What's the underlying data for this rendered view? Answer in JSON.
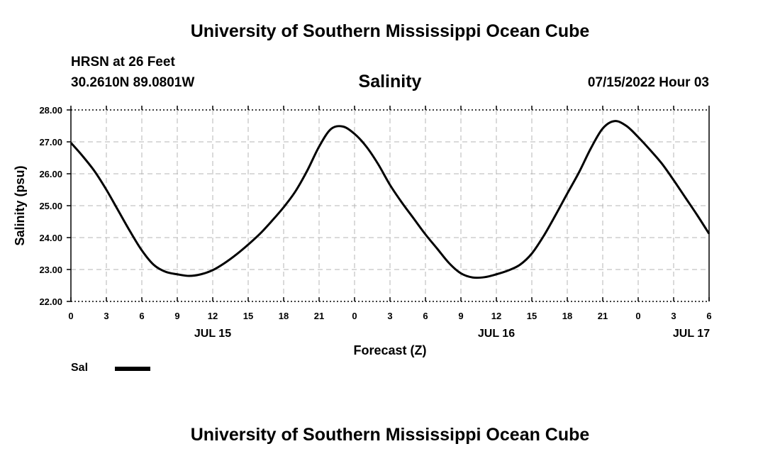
{
  "header": {
    "title": "University of Southern Mississippi Ocean Cube",
    "station": "HRSN at 26 Feet",
    "coordinates": "30.2610N  89.0801W",
    "datetime": "07/15/2022 Hour 03"
  },
  "footer": {
    "title": "University of Southern Mississippi Ocean Cube"
  },
  "legend": {
    "label": "Sal",
    "color": "#000000"
  },
  "chart_data": {
    "type": "line",
    "title": "Salinity",
    "xlabel": "Forecast (Z)",
    "ylabel": "Salinity (psu)",
    "xlim": [
      0,
      54
    ],
    "ylim": [
      22,
      28
    ],
    "y_ticks": [
      "22.00",
      "23.00",
      "24.00",
      "25.00",
      "26.00",
      "27.00",
      "28.00"
    ],
    "x_ticks": [
      {
        "hour": 0,
        "label": "0"
      },
      {
        "hour": 3,
        "label": "3"
      },
      {
        "hour": 6,
        "label": "6"
      },
      {
        "hour": 9,
        "label": "9"
      },
      {
        "hour": 12,
        "label": "12"
      },
      {
        "hour": 15,
        "label": "15"
      },
      {
        "hour": 18,
        "label": "18"
      },
      {
        "hour": 21,
        "label": "21"
      },
      {
        "hour": 24,
        "label": "0"
      },
      {
        "hour": 27,
        "label": "3"
      },
      {
        "hour": 30,
        "label": "6"
      },
      {
        "hour": 33,
        "label": "9"
      },
      {
        "hour": 36,
        "label": "12"
      },
      {
        "hour": 39,
        "label": "15"
      },
      {
        "hour": 42,
        "label": "18"
      },
      {
        "hour": 45,
        "label": "21"
      },
      {
        "hour": 48,
        "label": "0"
      },
      {
        "hour": 51,
        "label": "3"
      },
      {
        "hour": 54,
        "label": "6"
      }
    ],
    "date_labels": [
      {
        "hour": 12,
        "label": "JUL 15"
      },
      {
        "hour": 36,
        "label": "JUL 16"
      },
      {
        "hour": 52.5,
        "label": "JUL 17"
      }
    ],
    "grid": true,
    "series": [
      {
        "name": "Sal",
        "x": [
          0,
          1,
          2,
          3,
          4,
          5,
          6,
          7,
          8,
          9,
          10,
          11,
          12,
          13,
          14,
          15,
          16,
          17,
          18,
          19,
          20,
          21,
          22,
          23,
          24,
          25,
          26,
          27,
          28,
          29,
          30,
          31,
          32,
          33,
          34,
          35,
          36,
          37,
          38,
          39,
          40,
          41,
          42,
          43,
          44,
          45,
          46,
          47,
          48,
          49,
          50,
          51,
          52,
          53,
          54
        ],
        "values": [
          26.97,
          26.55,
          26.08,
          25.5,
          24.85,
          24.2,
          23.6,
          23.15,
          22.93,
          22.85,
          22.8,
          22.85,
          22.98,
          23.2,
          23.47,
          23.78,
          24.12,
          24.52,
          24.95,
          25.45,
          26.1,
          26.85,
          27.4,
          27.48,
          27.25,
          26.85,
          26.3,
          25.65,
          25.1,
          24.6,
          24.1,
          23.65,
          23.2,
          22.88,
          22.75,
          22.76,
          22.85,
          22.97,
          23.15,
          23.5,
          24.05,
          24.7,
          25.38,
          26.05,
          26.8,
          27.42,
          27.65,
          27.5,
          27.15,
          26.75,
          26.32,
          25.8,
          25.25,
          24.7,
          24.12
        ]
      }
    ]
  }
}
